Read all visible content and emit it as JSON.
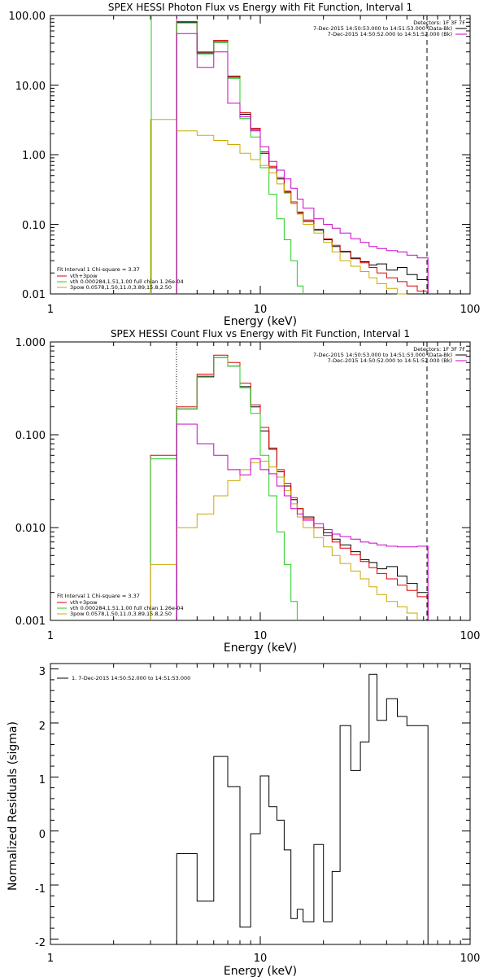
{
  "chart_data": [
    {
      "type": "line",
      "title": "SPEX HESSI Photon Flux vs Energy with Fit Function, Interval 1",
      "xlabel": "Energy (keV)",
      "ylabel": "",
      "xscale": "log",
      "yscale": "log",
      "xlim": [
        1,
        100
      ],
      "ylim": [
        0.01,
        100
      ],
      "x_tick_labels": [
        "1",
        "10",
        "100"
      ],
      "y_tick_labels": [
        "0.01",
        "0.10",
        "1.00",
        "10.00",
        "100.00"
      ],
      "bin_edges": [
        3,
        4,
        5,
        6,
        7,
        8,
        9,
        10,
        11,
        12,
        13,
        14,
        15,
        16,
        18,
        20,
        22,
        24,
        27,
        30,
        33,
        36,
        40,
        45,
        50,
        56,
        63
      ],
      "series": [
        {
          "name": "data",
          "color": "#000000",
          "values": [
            null,
            80,
            29,
            42,
            13,
            3.8,
            2.3,
            1.05,
            0.65,
            0.45,
            0.29,
            0.2,
            0.145,
            0.11,
            0.082,
            0.06,
            0.048,
            0.04,
            0.032,
            0.029,
            0.026,
            0.027,
            0.022,
            0.024,
            0.019,
            0.016
          ]
        },
        {
          "name": "vth+3pow",
          "color": "#dd0000",
          "values": [
            null,
            82,
            30,
            44,
            13.5,
            4.0,
            2.4,
            1.1,
            0.68,
            0.47,
            0.3,
            0.21,
            0.15,
            0.115,
            0.085,
            0.062,
            0.05,
            0.041,
            0.033,
            0.028,
            0.024,
            0.02,
            0.017,
            0.015,
            0.013,
            0.011
          ]
        },
        {
          "name": "vth 0.000284,1.51,1.00 full chian 1.26e-04",
          "color": "#22cc22",
          "values": [
            null,
            78,
            28,
            41,
            12.5,
            3.3,
            1.8,
            0.65,
            0.27,
            0.12,
            0.06,
            0.03,
            0.013,
            null,
            null,
            null,
            null,
            null,
            null,
            null,
            null,
            null,
            null,
            null,
            null,
            null
          ]
        },
        {
          "name": "3pow 0.0578,1.50,11.0,3.89,15.8,2.50",
          "color": "#ccaa00",
          "values": [
            3.2,
            2.2,
            1.9,
            1.6,
            1.4,
            1.05,
            0.85,
            0.7,
            0.55,
            0.38,
            0.28,
            0.2,
            0.14,
            0.1,
            0.075,
            0.055,
            0.04,
            0.03,
            0.025,
            0.021,
            0.017,
            0.014,
            0.012,
            0.01,
            null,
            null
          ]
        },
        {
          "name": "bk",
          "color": "#cc00cc",
          "values": [
            null,
            55,
            18,
            30,
            5.5,
            3.5,
            2.2,
            1.3,
            0.8,
            0.6,
            0.45,
            0.33,
            0.23,
            0.17,
            0.12,
            0.1,
            0.088,
            0.075,
            0.062,
            0.055,
            0.048,
            0.045,
            0.042,
            0.04,
            0.036,
            0.033
          ]
        }
      ],
      "legend_topright": {
        "heading": "Detectors: 1F 3F 7F",
        "lines": [
          "7-Dec-2015 14:50:53.000 to 14:51:53.000 (Data-Bk)",
          "7-Dec-2015 14:50:52.000 to 14:51:52.000 (Bk)"
        ]
      },
      "legend_bottomleft": {
        "heading": "Fit Interval  1    Chi-square = 3.37",
        "lines": [
          "vth+3pow",
          "vth 0.000284,1.51,1.00  full chian 1.26e-04",
          "3pow 0.0578,1.50,11.0,3.89,15.8,2.50"
        ]
      }
    },
    {
      "type": "line",
      "title": "SPEX HESSI Count Flux vs Energy with Fit Function, Interval 1",
      "xlabel": "Energy (keV)",
      "ylabel": "",
      "xscale": "log",
      "yscale": "log",
      "xlim": [
        1,
        100
      ],
      "ylim": [
        0.001,
        1
      ],
      "x_tick_labels": [
        "1",
        "10",
        "100"
      ],
      "y_tick_labels": [
        "0.001",
        "0.010",
        "0.100",
        "1.000"
      ],
      "bin_edges": [
        3,
        4,
        5,
        6,
        7,
        8,
        9,
        10,
        11,
        12,
        13,
        14,
        15,
        16,
        18,
        20,
        22,
        24,
        27,
        30,
        33,
        36,
        40,
        45,
        50,
        56,
        63
      ],
      "series": [
        {
          "name": "data",
          "color": "#000000",
          "values": [
            null,
            0.19,
            0.42,
            0.68,
            0.55,
            0.33,
            0.2,
            0.11,
            0.07,
            0.04,
            0.028,
            0.02,
            0.016,
            0.013,
            0.01,
            0.0088,
            0.0075,
            0.0065,
            0.0055,
            0.0045,
            0.0042,
            0.0036,
            0.0038,
            0.003,
            0.0025,
            0.002
          ]
        },
        {
          "name": "vth+3pow",
          "color": "#dd0000",
          "values": [
            0.06,
            0.2,
            0.45,
            0.72,
            0.6,
            0.36,
            0.21,
            0.12,
            0.072,
            0.042,
            0.03,
            0.021,
            0.016,
            0.0125,
            0.01,
            0.0082,
            0.007,
            0.006,
            0.0051,
            0.0043,
            0.0037,
            0.0032,
            0.0028,
            0.0024,
            0.0021,
            0.0018
          ]
        },
        {
          "name": "vth",
          "color": "#22cc22",
          "values": [
            0.055,
            0.19,
            0.43,
            0.68,
            0.55,
            0.32,
            0.17,
            0.06,
            0.022,
            0.009,
            0.004,
            0.0016,
            null,
            null,
            null,
            null,
            null,
            null,
            null,
            null,
            null,
            null,
            null,
            null,
            null,
            null
          ]
        },
        {
          "name": "3pow",
          "color": "#ccaa00",
          "values": [
            0.004,
            0.01,
            0.014,
            0.022,
            0.032,
            0.042,
            0.05,
            0.052,
            0.045,
            0.035,
            0.025,
            0.018,
            0.013,
            0.01,
            0.0078,
            0.0062,
            0.005,
            0.0041,
            0.0034,
            0.0028,
            0.0023,
            0.0019,
            0.0016,
            0.0014,
            0.0012,
            null
          ]
        },
        {
          "name": "bk",
          "color": "#cc00cc",
          "values": [
            null,
            0.13,
            0.08,
            0.06,
            0.042,
            0.037,
            0.055,
            0.042,
            0.038,
            0.028,
            0.022,
            0.016,
            0.014,
            0.012,
            0.011,
            0.0095,
            0.0085,
            0.008,
            0.0075,
            0.007,
            0.0068,
            0.0065,
            0.0063,
            0.0062,
            0.0062,
            0.0063
          ]
        }
      ],
      "legend_topright": {
        "heading": "Detectors: 1F 3F 7F",
        "lines": [
          "7-Dec-2015 14:50:53.000 to 14:51:53.000 (Data-Bk)",
          "7-Dec-2015 14:50:52.000 to 14:51:52.000 (Bk)"
        ]
      },
      "legend_bottomleft": {
        "heading": "Fit Interval  1    Chi-square = 3.37",
        "lines": [
          "vth+3pow",
          "vth 0.000284,1.51,1.00  full chian 1.26e-04",
          "3pow 0.0578,1.50,11.0,3.89,15.8,2.50"
        ]
      }
    },
    {
      "type": "line",
      "title": "",
      "xlabel": "Energy (keV)",
      "ylabel": "Normalized Residuals (sigma)",
      "xscale": "log",
      "yscale": "linear",
      "xlim": [
        1,
        100
      ],
      "ylim": [
        -2.1,
        3.1
      ],
      "x_tick_labels": [
        "1",
        "10",
        "100"
      ],
      "y_tick_labels": [
        "-2",
        "-1",
        "0",
        "1",
        "2",
        "3"
      ],
      "bin_edges": [
        4,
        5,
        6,
        7,
        8,
        9,
        10,
        11,
        12,
        13,
        14,
        15,
        16,
        18,
        20,
        22,
        24,
        27,
        30,
        33,
        36,
        40,
        45,
        50,
        56,
        63
      ],
      "series": [
        {
          "name": "1. 7-Dec-2015 14:50:52.000 to 14:51:53.000",
          "color": "#000000",
          "values": [
            -0.42,
            -1.3,
            1.38,
            0.82,
            -1.78,
            -0.05,
            1.02,
            0.45,
            0.2,
            -0.35,
            -1.62,
            -1.45,
            -1.68,
            -0.25,
            -1.68,
            -0.75,
            1.95,
            1.12,
            1.65,
            2.9,
            2.05,
            2.45,
            2.12,
            1.95,
            1.95
          ]
        }
      ]
    }
  ]
}
